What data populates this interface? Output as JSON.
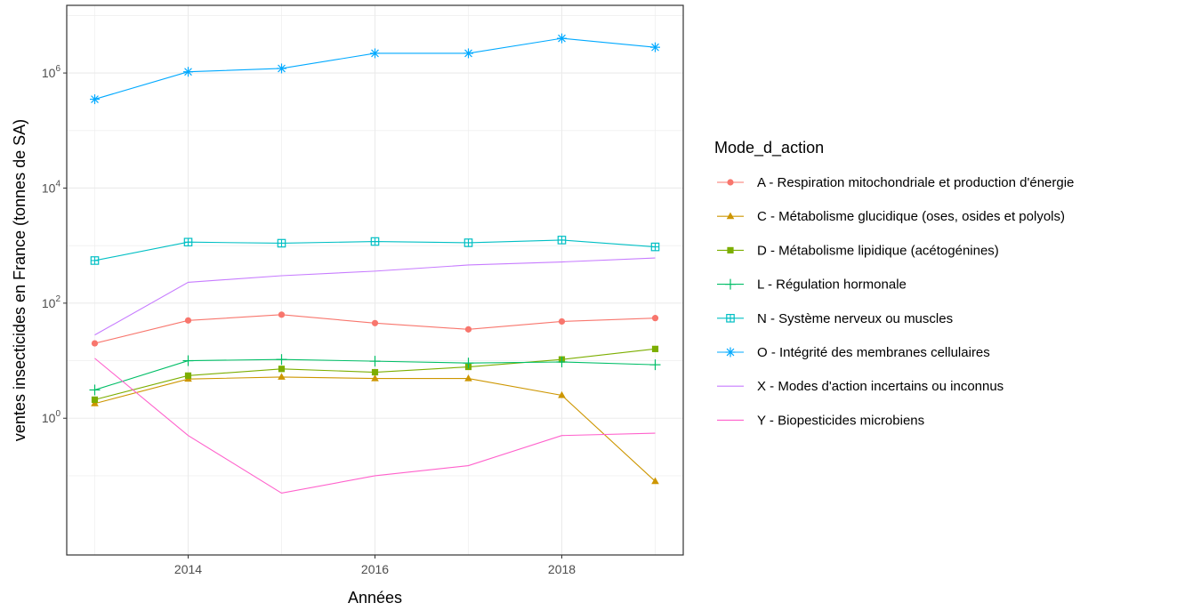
{
  "chart_data": {
    "type": "line",
    "xlabel": "Années",
    "ylabel": "ventes insecticides en France (tonnes de SA)",
    "x_ticks": [
      "2014",
      "2016",
      "2018"
    ],
    "y_ticks": [
      {
        "base": "10",
        "exp": "0"
      },
      {
        "base": "10",
        "exp": "2"
      },
      {
        "base": "10",
        "exp": "4"
      },
      {
        "base": "10",
        "exp": "6"
      }
    ],
    "y_scale": "log10",
    "xlim": [
      2012.7,
      2019.3
    ],
    "ylim": [
      0.0042,
      15000000
    ],
    "grid": true,
    "legend": {
      "title": "Mode_d_action",
      "position": "right"
    },
    "x": [
      2013,
      2014,
      2015,
      2016,
      2017,
      2018,
      2019
    ],
    "series": [
      {
        "name": "A - Respiration mitochondriale et production d'énergie",
        "color": "#F8766D",
        "marker": "circle",
        "values": [
          20,
          50,
          63,
          45,
          35,
          48,
          55
        ]
      },
      {
        "name": "C - Métabolisme glucidique (oses, osides et polyols)",
        "color": "#CD9600",
        "marker": "triangle",
        "values": [
          1.8,
          4.8,
          5.2,
          4.9,
          4.9,
          2.5,
          0.08
        ]
      },
      {
        "name": "D - Métabolisme lipidique (acétogénines)",
        "color": "#7CAE00",
        "marker": "square",
        "values": [
          2.1,
          5.5,
          7.2,
          6.3,
          7.8,
          10.5,
          16
        ]
      },
      {
        "name": "L - Régulation hormonale",
        "color": "#00BE67",
        "marker": "plus",
        "values": [
          3.1,
          10,
          10.5,
          9.8,
          9.1,
          9.5,
          8.5
        ]
      },
      {
        "name": "N - Système nerveux ou muscles",
        "color": "#00BFC4",
        "marker": "square-cross",
        "values": [
          550,
          1150,
          1100,
          1180,
          1120,
          1250,
          950
        ]
      },
      {
        "name": "O - Intégrité des membranes cellulaires",
        "color": "#00A9FF",
        "marker": "asterisk",
        "values": [
          350000,
          1050000,
          1200000,
          2200000,
          2200000,
          4000000,
          2800000
        ]
      },
      {
        "name": "X - Modes d'action incertains ou inconnus",
        "color": "#C77CFF",
        "marker": "none",
        "values": [
          28,
          230,
          300,
          360,
          460,
          520,
          610
        ]
      },
      {
        "name": "Y - Biopesticides microbiens",
        "color": "#FF61CC",
        "marker": "none",
        "values": [
          11,
          0.5,
          0.05,
          0.1,
          0.15,
          0.5,
          0.55
        ]
      }
    ]
  }
}
